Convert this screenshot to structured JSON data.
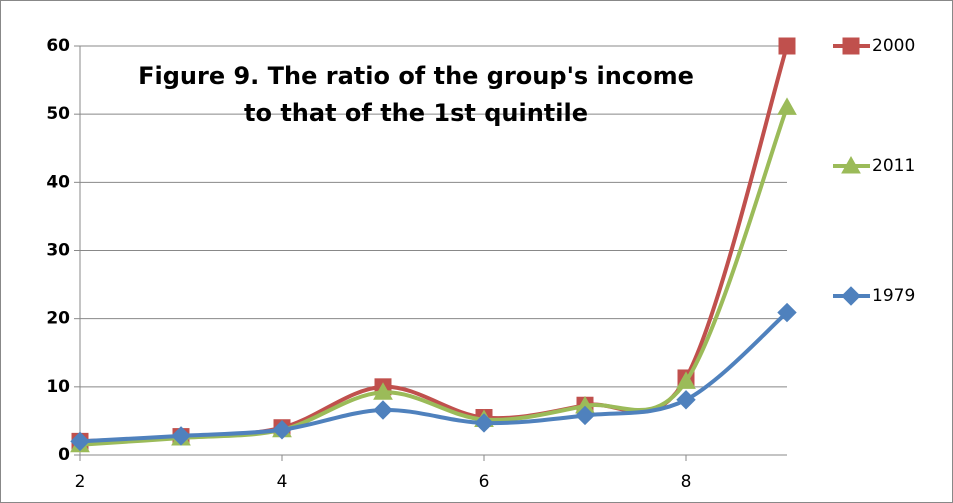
{
  "chart_data": {
    "type": "line",
    "title": [
      "Figure 9. The ratio of the group's income",
      "to that of the 1st quintile"
    ],
    "x": [
      2,
      3,
      4,
      5,
      6,
      7,
      8,
      9
    ],
    "xlim": [
      2,
      9
    ],
    "xticks": [
      2,
      4,
      6,
      8
    ],
    "ylim": [
      0,
      60
    ],
    "yticks": [
      0,
      10,
      20,
      30,
      40,
      50,
      60
    ],
    "grid": true,
    "smooth": true,
    "legend": "right",
    "series": [
      {
        "name": "2000",
        "color": "#c0504d",
        "marker": "square",
        "values": [
          2,
          2.7,
          4,
          10,
          5.5,
          7.3,
          11.3,
          60
        ]
      },
      {
        "name": "2011",
        "color": "#9bbb59",
        "marker": "triangle",
        "values": [
          1.5,
          2.5,
          3.7,
          9.2,
          5.2,
          7.2,
          10.8,
          51
        ]
      },
      {
        "name": "1979",
        "color": "#4f81bd",
        "marker": "diamond",
        "values": [
          2,
          2.8,
          3.7,
          6.6,
          4.7,
          5.8,
          8.1,
          20.9
        ]
      }
    ]
  }
}
